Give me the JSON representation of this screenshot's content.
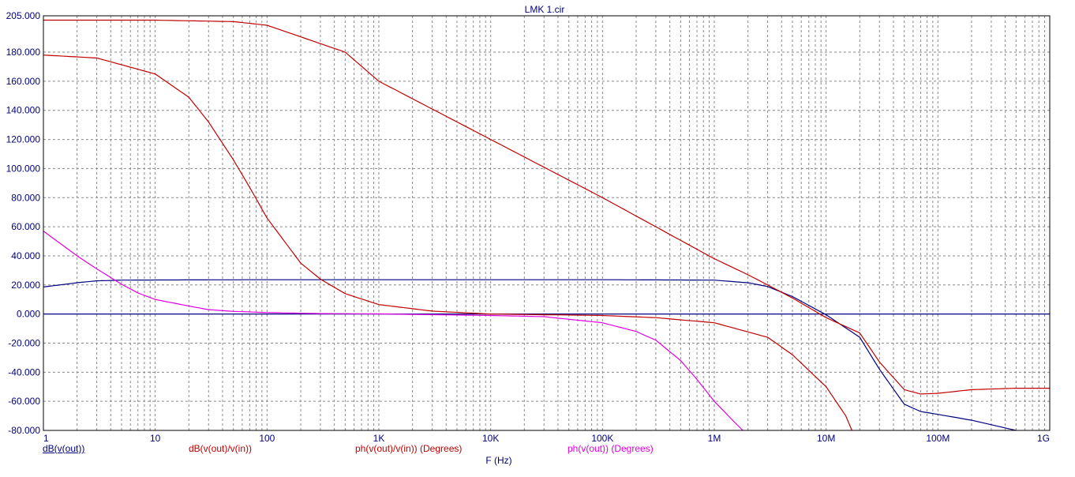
{
  "title": "LMK 1.cir",
  "chart_data": {
    "type": "line",
    "title": "LMK 1.cir",
    "xlabel": "F (Hz)",
    "x_scale": "log",
    "xlim": [
      1,
      1000000000
    ],
    "ylim": [
      -80,
      205
    ],
    "x_ticks": [
      {
        "value": 1,
        "label": "1"
      },
      {
        "value": 10,
        "label": "10"
      },
      {
        "value": 100,
        "label": "100"
      },
      {
        "value": 1000,
        "label": "1K"
      },
      {
        "value": 10000,
        "label": "10K"
      },
      {
        "value": 100000,
        "label": "100K"
      },
      {
        "value": 1000000,
        "label": "1M"
      },
      {
        "value": 10000000,
        "label": "10M"
      },
      {
        "value": 100000000,
        "label": "100M"
      },
      {
        "value": 1000000000,
        "label": "1G"
      }
    ],
    "y_ticks": [
      {
        "value": 205,
        "label": "205.000"
      },
      {
        "value": 180,
        "label": "180.000"
      },
      {
        "value": 160,
        "label": "160.000"
      },
      {
        "value": 140,
        "label": "140.000"
      },
      {
        "value": 120,
        "label": "120.000"
      },
      {
        "value": 100,
        "label": "100.000"
      },
      {
        "value": 80,
        "label": "80.000"
      },
      {
        "value": 60,
        "label": "60.000"
      },
      {
        "value": 40,
        "label": "40.000"
      },
      {
        "value": 20,
        "label": "20.000"
      },
      {
        "value": 0,
        "label": "0.000"
      },
      {
        "value": -20,
        "label": "-20.000"
      },
      {
        "value": -40,
        "label": "-40.000"
      },
      {
        "value": -60,
        "label": "-60.000"
      },
      {
        "value": -80,
        "label": "-80.000"
      }
    ],
    "grid": true,
    "legend_position": "bottom",
    "series": [
      {
        "name": "dB(v(out))",
        "color": "#000080",
        "x": [
          1,
          2,
          3,
          5,
          10,
          100,
          1000,
          10000,
          100000,
          1000000,
          2000000,
          3000000,
          5000000,
          10000000,
          20000000,
          30000000,
          50000000,
          70000000,
          100000000,
          200000000,
          500000000,
          700000000
        ],
        "y": [
          18.6,
          21.5,
          22.8,
          23.3,
          23.4,
          23.6,
          23.6,
          23.6,
          23.6,
          23.3,
          21.5,
          18.9,
          12.0,
          -0.5,
          -16.0,
          -38.0,
          -62.0,
          -67.0,
          -69.0,
          -73.0,
          -80.0,
          -81.0
        ]
      },
      {
        "name": "dB(v(out)/v(in))",
        "color": "#c00000",
        "x": [
          1,
          10,
          50,
          100,
          500,
          1000,
          10000,
          100000,
          1000000,
          2000000,
          3000000,
          5000000,
          10000000,
          20000000,
          30000000,
          50000000,
          70000000,
          100000000,
          200000000,
          500000000,
          1000000000
        ],
        "y": [
          202.0,
          202.0,
          201.0,
          198.5,
          180.0,
          160.0,
          120.0,
          80.0,
          38.0,
          27.0,
          20.0,
          11.0,
          -2.5,
          -13.0,
          -33.0,
          -52.0,
          -55.0,
          -54.5,
          -52.0,
          -51.0,
          -51.0
        ]
      },
      {
        "name": "ph(v(out)/v(in)) (Degrees)",
        "color": "#c00000",
        "x": [
          1,
          3,
          10,
          20,
          30,
          50,
          70,
          100,
          200,
          300,
          500,
          1000,
          3000,
          10000,
          100000,
          300000,
          1000000,
          3000000,
          5000000,
          10000000,
          15000000,
          17000000
        ],
        "y": [
          178.0,
          176.0,
          165.0,
          149.0,
          132.0,
          106.0,
          87.0,
          66.0,
          35.0,
          24.0,
          14.0,
          6.5,
          2.0,
          0.0,
          -1.0,
          -2.5,
          -6.0,
          -16.0,
          -28.0,
          -50.0,
          -70.0,
          -80.0
        ]
      },
      {
        "name": "ph(v(out)) (Degrees)",
        "color": "#e000e0",
        "x": [
          1,
          2,
          3,
          5,
          7,
          10,
          20,
          30,
          50,
          100,
          300,
          1000,
          10000,
          30000,
          100000,
          200000,
          300000,
          500000,
          700000,
          1000000,
          1500000,
          1800000
        ],
        "y": [
          57.0,
          40.0,
          31.0,
          20.5,
          14.5,
          10.0,
          5.5,
          3.0,
          1.8,
          1.0,
          0.3,
          0.1,
          -1.0,
          -1.8,
          -6.0,
          -12.0,
          -18.0,
          -32.0,
          -45.0,
          -60.0,
          -74.0,
          -80.0
        ]
      }
    ]
  }
}
